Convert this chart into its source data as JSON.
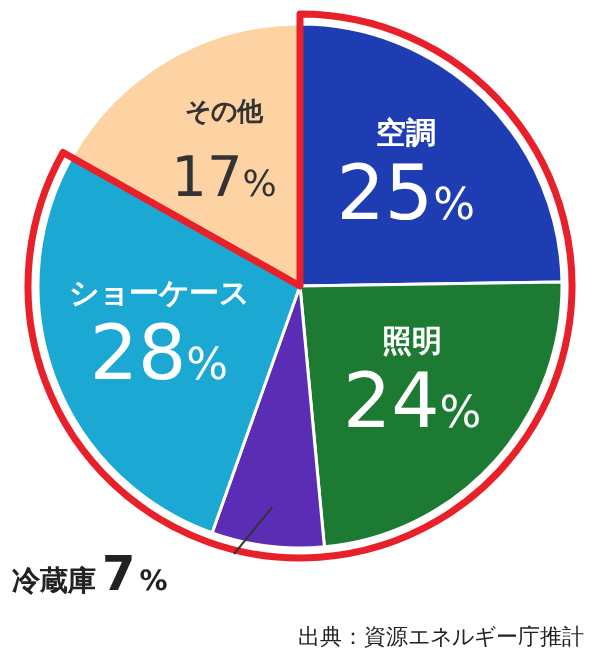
{
  "chart_data": {
    "type": "pie",
    "categories": [
      "空調",
      "照明",
      "冷蔵庫",
      "ショーケース",
      "その他"
    ],
    "values": [
      25,
      24,
      7,
      28,
      17
    ],
    "value_labels": [
      "25%",
      "24%",
      "7%",
      "28%",
      "17%"
    ],
    "colors": [
      "#1f3db3",
      "#1d7a33",
      "#5b2db5",
      "#1ba9d4",
      "#fdd3a3"
    ],
    "annotations": [
      "出典：資源エネルギー庁推計"
    ]
  }
}
